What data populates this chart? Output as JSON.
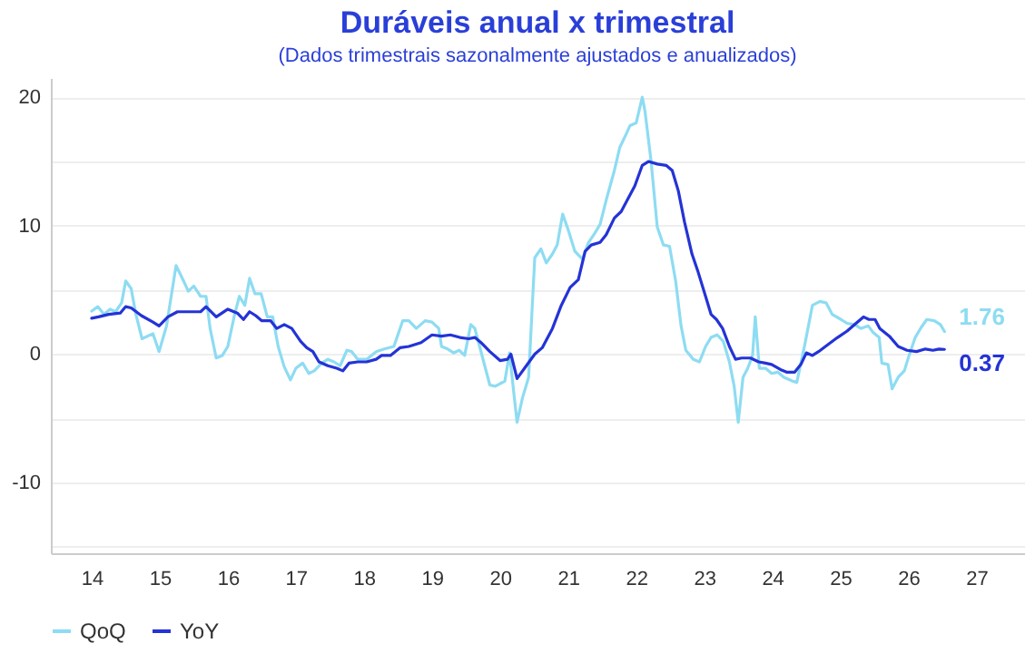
{
  "chart_data": {
    "type": "line",
    "title": "Duráveis anual x trimestral",
    "subtitle": "(Dados trimestrais sazonalmente ajustados e anualizados)",
    "xlim": [
      13.4,
      27.7
    ],
    "xticks": [
      14,
      15,
      16,
      17,
      18,
      19,
      20,
      21,
      22,
      23,
      24,
      25,
      26,
      27
    ],
    "ylim": [
      -15.5,
      21.5
    ],
    "yticks": [
      {
        "value": -15,
        "label": null
      },
      -10,
      {
        "value": -5,
        "label": null
      },
      0,
      {
        "value": 5,
        "label": null
      },
      10,
      {
        "value": 15,
        "label": null
      },
      20
    ],
    "grid": "y",
    "legend": "bottom",
    "line_style": "solid",
    "series": [
      {
        "name": "QoQ",
        "color": "#8ddcf2",
        "x": [
          14.0,
          14.09,
          14.18,
          14.27,
          14.35,
          14.44,
          14.5,
          14.58,
          14.65,
          14.74,
          14.9,
          14.99,
          15.1,
          15.24,
          15.35,
          15.42,
          15.5,
          15.6,
          15.68,
          15.74,
          15.83,
          15.92,
          16.0,
          16.1,
          16.17,
          16.25,
          16.32,
          16.4,
          16.49,
          16.58,
          16.66,
          16.74,
          16.83,
          16.92,
          17.0,
          17.1,
          17.19,
          17.27,
          17.38,
          17.47,
          17.56,
          17.65,
          17.75,
          17.82,
          17.91,
          18.04,
          18.18,
          18.3,
          18.44,
          18.57,
          18.66,
          18.77,
          18.9,
          19.0,
          19.1,
          19.14,
          19.23,
          19.32,
          19.4,
          19.48,
          19.57,
          19.63,
          19.76,
          19.85,
          19.93,
          20.07,
          20.14,
          20.2,
          20.25,
          20.33,
          20.42,
          20.51,
          20.6,
          20.68,
          20.77,
          20.84,
          20.92,
          21.0,
          21.1,
          21.21,
          21.3,
          21.39,
          21.47,
          21.56,
          21.68,
          21.76,
          21.85,
          21.91,
          22.0,
          22.09,
          22.13,
          22.22,
          22.31,
          22.4,
          22.49,
          22.58,
          22.66,
          22.73,
          22.84,
          22.93,
          23.02,
          23.1,
          23.19,
          23.28,
          23.37,
          23.44,
          23.5,
          23.57,
          23.64,
          23.71,
          23.75,
          23.81,
          23.9,
          23.99,
          24.08,
          24.17,
          24.3,
          24.36,
          24.48,
          24.59,
          24.7,
          24.79,
          24.88,
          25.01,
          25.1,
          25.21,
          25.3,
          25.41,
          25.48,
          25.57,
          25.61,
          25.7,
          25.76,
          25.85,
          25.94,
          26.01,
          26.1,
          26.19,
          26.27,
          26.38,
          26.47,
          26.53
        ],
        "values": [
          3.35,
          3.7,
          3.1,
          3.5,
          3.3,
          4.0,
          5.7,
          5.1,
          3.1,
          1.2,
          1.6,
          0.2,
          2.2,
          6.9,
          5.7,
          4.9,
          5.3,
          4.5,
          4.5,
          2.0,
          -0.3,
          -0.1,
          0.6,
          3.1,
          4.5,
          3.8,
          5.9,
          4.7,
          4.7,
          2.9,
          2.9,
          0.6,
          -1.0,
          -2.0,
          -1.1,
          -0.7,
          -1.5,
          -1.3,
          -0.7,
          -0.4,
          -0.6,
          -0.9,
          0.3,
          0.2,
          -0.4,
          -0.4,
          0.2,
          0.4,
          0.6,
          2.6,
          2.6,
          2.0,
          2.6,
          2.5,
          2.0,
          0.6,
          0.4,
          0.1,
          0.3,
          -0.1,
          2.3,
          2.0,
          -0.6,
          -2.4,
          -2.5,
          -2.1,
          0.1,
          -2.9,
          -5.3,
          -3.4,
          -1.8,
          7.5,
          8.2,
          7.1,
          7.8,
          8.5,
          10.9,
          9.7,
          8.0,
          7.4,
          8.7,
          9.4,
          10.1,
          12.0,
          14.3,
          16.1,
          17.1,
          17.8,
          18.0,
          20.0,
          18.9,
          15.0,
          9.9,
          8.5,
          8.4,
          5.7,
          2.2,
          0.3,
          -0.4,
          -0.6,
          0.6,
          1.3,
          1.5,
          1.0,
          -0.6,
          -2.5,
          -5.3,
          -1.8,
          -1.1,
          -0.1,
          2.9,
          -1.1,
          -1.1,
          -1.5,
          -1.4,
          -1.8,
          -2.1,
          -2.2,
          0.8,
          3.8,
          4.1,
          4.0,
          3.1,
          2.7,
          2.4,
          2.3,
          2.0,
          2.2,
          1.7,
          1.3,
          -0.7,
          -0.8,
          -2.7,
          -1.8,
          -1.3,
          -0.1,
          1.3,
          2.1,
          2.7,
          2.6,
          2.3,
          1.76
        ],
        "value_labels": [
          null,
          null,
          null,
          null,
          null,
          null,
          null,
          null,
          null,
          null,
          null,
          null,
          null,
          null,
          null,
          null,
          null,
          null,
          null,
          null,
          null,
          null,
          null,
          null,
          null,
          null,
          null,
          null,
          null,
          null,
          null,
          null,
          null,
          null,
          null,
          null,
          null,
          null,
          null,
          null,
          null,
          null,
          null,
          null,
          null,
          null,
          null,
          null,
          null,
          null,
          null,
          null,
          null,
          null,
          null,
          null,
          null,
          null,
          null,
          null,
          null,
          null,
          null,
          null,
          null,
          null,
          null,
          null,
          null,
          null,
          null,
          null,
          null,
          null,
          null,
          null,
          null,
          null,
          null,
          null,
          null,
          null,
          null,
          null,
          null,
          null,
          null,
          null,
          null,
          null,
          null,
          null,
          null,
          null,
          null,
          null,
          null,
          null,
          null,
          null,
          null,
          null,
          null,
          null,
          null,
          null,
          null,
          null,
          null,
          null,
          null,
          null,
          null,
          null,
          null,
          null,
          null,
          null,
          null,
          null,
          null,
          null,
          null,
          null,
          null,
          null,
          null,
          null,
          null,
          null,
          null,
          null,
          null,
          null,
          null,
          null,
          null,
          null,
          null,
          null,
          null,
          "1.76"
        ]
      },
      {
        "name": "YoY",
        "color": "#2433d6",
        "x": [
          14.0,
          14.1,
          14.25,
          14.42,
          14.5,
          14.58,
          14.73,
          14.9,
          14.99,
          15.12,
          15.26,
          15.44,
          15.6,
          15.68,
          15.83,
          16.0,
          16.14,
          16.23,
          16.32,
          16.41,
          16.5,
          16.63,
          16.72,
          16.83,
          16.94,
          17.07,
          17.16,
          17.25,
          17.34,
          17.47,
          17.6,
          17.69,
          17.78,
          17.91,
          18.04,
          18.18,
          18.26,
          18.39,
          18.53,
          18.66,
          18.84,
          19.0,
          19.14,
          19.27,
          19.41,
          19.54,
          19.63,
          19.72,
          19.85,
          20.0,
          20.11,
          20.16,
          20.25,
          20.36,
          20.51,
          20.62,
          20.77,
          20.9,
          21.03,
          21.15,
          21.25,
          21.34,
          21.47,
          21.56,
          21.68,
          21.78,
          21.87,
          21.98,
          22.09,
          22.18,
          22.31,
          22.44,
          22.53,
          22.62,
          22.71,
          22.82,
          22.91,
          23.02,
          23.1,
          23.18,
          23.27,
          23.37,
          23.46,
          23.55,
          23.68,
          23.8,
          23.9,
          23.99,
          24.12,
          24.21,
          24.33,
          24.42,
          24.5,
          24.59,
          24.68,
          24.83,
          24.96,
          25.1,
          25.23,
          25.34,
          25.42,
          25.51,
          25.58,
          25.72,
          25.85,
          25.98,
          26.12,
          26.25,
          26.36,
          26.45,
          26.53
        ],
        "values": [
          2.8,
          2.9,
          3.1,
          3.2,
          3.7,
          3.6,
          3.0,
          2.5,
          2.2,
          2.9,
          3.3,
          3.3,
          3.3,
          3.7,
          2.9,
          3.5,
          3.2,
          2.7,
          3.3,
          3.0,
          2.6,
          2.6,
          2.0,
          2.3,
          2.0,
          1.0,
          0.5,
          0.2,
          -0.6,
          -0.9,
          -1.1,
          -1.3,
          -0.7,
          -0.6,
          -0.6,
          -0.4,
          -0.1,
          -0.1,
          0.5,
          0.6,
          0.9,
          1.5,
          1.4,
          1.5,
          1.3,
          1.2,
          1.3,
          0.9,
          0.2,
          -0.5,
          -0.4,
          0.0,
          -1.9,
          -1.1,
          0.0,
          0.5,
          2.0,
          3.8,
          5.2,
          5.8,
          8.0,
          8.5,
          8.7,
          9.3,
          10.6,
          11.1,
          12.0,
          13.1,
          14.7,
          15.0,
          14.8,
          14.7,
          14.3,
          12.7,
          10.3,
          7.8,
          6.4,
          4.5,
          3.1,
          2.7,
          2.0,
          0.6,
          -0.4,
          -0.3,
          -0.3,
          -0.6,
          -0.7,
          -0.8,
          -1.2,
          -1.4,
          -1.4,
          -0.8,
          0.1,
          -0.1,
          0.2,
          0.8,
          1.3,
          1.8,
          2.4,
          2.9,
          2.7,
          2.7,
          2.0,
          1.4,
          0.6,
          0.3,
          0.2,
          0.4,
          0.3,
          0.4,
          0.37
        ],
        "value_labels": [
          null,
          null,
          null,
          null,
          null,
          null,
          null,
          null,
          null,
          null,
          null,
          null,
          null,
          null,
          null,
          null,
          null,
          null,
          null,
          null,
          null,
          null,
          null,
          null,
          null,
          null,
          null,
          null,
          null,
          null,
          null,
          null,
          null,
          null,
          null,
          null,
          null,
          null,
          null,
          null,
          null,
          null,
          null,
          null,
          null,
          null,
          null,
          null,
          null,
          null,
          null,
          null,
          null,
          null,
          null,
          null,
          null,
          null,
          null,
          null,
          null,
          null,
          null,
          null,
          null,
          null,
          null,
          null,
          null,
          null,
          null,
          null,
          null,
          null,
          null,
          null,
          null,
          null,
          null,
          null,
          null,
          null,
          null,
          null,
          null,
          null,
          null,
          null,
          null,
          null,
          null,
          null,
          null,
          null,
          null,
          null,
          null,
          null,
          null,
          null,
          null,
          null,
          null,
          null,
          null,
          null,
          null,
          null,
          null,
          null,
          "0.37"
        ]
      }
    ]
  }
}
